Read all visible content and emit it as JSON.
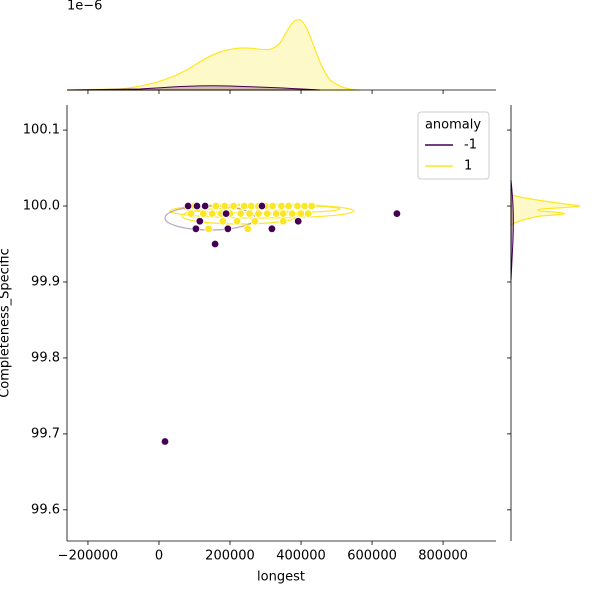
{
  "chart_data": {
    "type": "scatter",
    "x_label": "longest",
    "y_label": "Completeness_Specific",
    "offset_label": "1e−6",
    "legend_title": "anomaly",
    "legend_loc": "upper right",
    "xlim": [
      -259000,
      949000
    ],
    "ylim": [
      99.559,
      100.133
    ],
    "xticks": [
      {
        "value": -200000,
        "label": "−200000"
      },
      0,
      200000,
      400000,
      600000,
      800000
    ],
    "yticks": [
      99.6,
      99.7,
      99.8,
      99.9,
      100.0,
      100.1
    ],
    "series": [
      {
        "name": "-1",
        "color": "#440154",
        "x": [
          82000,
          107000,
          130000,
          104000,
          115000,
          189000,
          194000,
          158000,
          318000,
          392000,
          290000,
          670000,
          17000
        ],
        "values": [
          100.0,
          100.0,
          100.0,
          99.97,
          99.98,
          99.99,
          99.97,
          99.95,
          99.97,
          99.98,
          100.0,
          99.99,
          99.69
        ]
      },
      {
        "name": "1",
        "color": "#fde725",
        "x": [
          100000,
          130000,
          160000,
          185000,
          210000,
          240000,
          260000,
          280000,
          300000,
          320000,
          345000,
          365000,
          390000,
          410000,
          430000,
          90000,
          125000,
          150000,
          175000,
          200000,
          230000,
          255000,
          280000,
          305000,
          330000,
          350000,
          375000,
          400000,
          420000,
          180000,
          220000,
          270000,
          350000,
          140000,
          250000
        ],
        "values": [
          100.0,
          100.0,
          100.0,
          100.0,
          100.0,
          100.0,
          100.0,
          100.0,
          100.0,
          100.0,
          100.0,
          100.0,
          100.0,
          100.0,
          100.0,
          99.99,
          99.99,
          99.99,
          99.99,
          99.99,
          99.99,
          99.99,
          99.99,
          99.99,
          99.99,
          99.99,
          99.99,
          99.99,
          99.99,
          99.98,
          99.98,
          99.98,
          99.98,
          99.97,
          99.97
        ]
      }
    ]
  }
}
